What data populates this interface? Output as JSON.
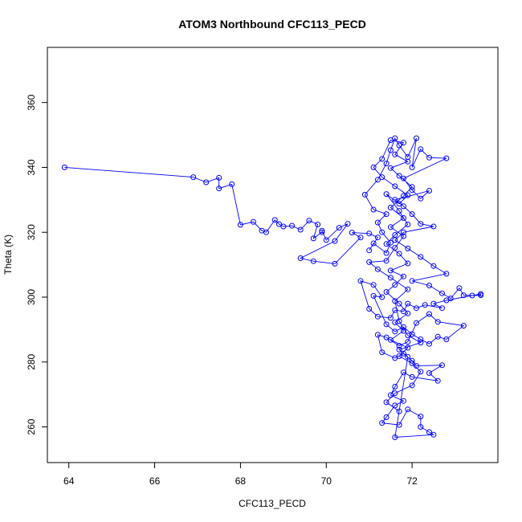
{
  "chart_data": {
    "type": "scatter",
    "title": "ATOM3 Northbound CFC113_PECD",
    "xlabel": "CFC113_PECD",
    "ylabel": "Theta (K)",
    "xlim": [
      63.5,
      74.0
    ],
    "ylim": [
      249.0,
      377.0
    ],
    "x_ticks": [
      64,
      66,
      68,
      70,
      72
    ],
    "y_ticks": [
      260,
      280,
      300,
      320,
      340,
      360
    ],
    "grid": false,
    "legend": "none",
    "series": [
      {
        "color": "#0000ff",
        "marker": "open-circle",
        "connected": true,
        "points": [
          [
            63.9,
            340.0
          ],
          [
            66.9,
            337.0
          ],
          [
            67.2,
            335.4
          ],
          [
            67.5,
            336.8
          ],
          [
            67.5,
            333.5
          ],
          [
            67.8,
            334.8
          ],
          [
            68.0,
            322.3
          ],
          [
            68.3,
            323.2
          ],
          [
            68.5,
            320.5
          ],
          [
            68.6,
            320.0
          ],
          [
            68.8,
            323.8
          ],
          [
            68.9,
            322.5
          ],
          [
            69.0,
            321.8
          ],
          [
            69.2,
            322.0
          ],
          [
            69.4,
            320.8
          ],
          [
            69.6,
            323.6
          ],
          [
            69.8,
            322.4
          ],
          [
            69.7,
            318.1
          ],
          [
            69.9,
            320.0
          ],
          [
            69.9,
            320.5
          ],
          [
            70.0,
            317.6
          ],
          [
            70.3,
            321.4
          ],
          [
            70.5,
            322.6
          ],
          [
            70.2,
            317.3
          ],
          [
            69.4,
            312.0
          ],
          [
            69.7,
            311.1
          ],
          [
            70.2,
            310.3
          ],
          [
            70.8,
            318.4
          ],
          [
            70.6,
            319.9
          ],
          [
            71.0,
            319.6
          ],
          [
            71.2,
            318.4
          ],
          [
            71.0,
            314.4
          ],
          [
            71.1,
            316.6
          ],
          [
            71.4,
            313.6
          ],
          [
            71.5,
            316.8
          ],
          [
            71.3,
            320.0
          ],
          [
            71.2,
            323.0
          ],
          [
            71.4,
            325.6
          ],
          [
            71.1,
            327.0
          ],
          [
            70.9,
            331.6
          ],
          [
            71.2,
            336.2
          ],
          [
            71.4,
            341.2
          ],
          [
            71.5,
            345.3
          ],
          [
            71.6,
            349.0
          ],
          [
            71.7,
            346.8
          ],
          [
            71.9,
            343.2
          ],
          [
            72.1,
            349.0
          ],
          [
            72.0,
            340.0
          ],
          [
            72.2,
            345.6
          ],
          [
            72.4,
            343.0
          ],
          [
            72.8,
            342.8
          ],
          [
            71.8,
            336.6
          ],
          [
            72.0,
            333.0
          ],
          [
            72.2,
            330.4
          ],
          [
            72.4,
            332.8
          ],
          [
            71.6,
            330.0
          ],
          [
            71.8,
            328.0
          ],
          [
            72.0,
            325.6
          ],
          [
            72.2,
            322.6
          ],
          [
            72.5,
            321.8
          ],
          [
            71.8,
            320.0
          ],
          [
            71.6,
            317.6
          ],
          [
            71.9,
            315.0
          ],
          [
            72.2,
            312.4
          ],
          [
            72.5,
            309.6
          ],
          [
            72.8,
            307.2
          ],
          [
            72.0,
            305.0
          ],
          [
            72.4,
            303.6
          ],
          [
            72.7,
            301.2
          ],
          [
            72.9,
            299.6
          ],
          [
            73.1,
            302.8
          ],
          [
            73.2,
            300.6
          ],
          [
            73.4,
            300.5
          ],
          [
            73.6,
            300.6
          ],
          [
            73.6,
            301.0
          ],
          [
            72.8,
            299.0
          ],
          [
            72.5,
            298.0
          ],
          [
            72.7,
            296.6
          ],
          [
            72.3,
            297.6
          ],
          [
            72.1,
            296.6
          ],
          [
            71.9,
            298.0
          ],
          [
            71.8,
            295.6
          ],
          [
            71.6,
            296.0
          ],
          [
            71.5,
            293.6
          ],
          [
            71.2,
            294.0
          ],
          [
            71.0,
            296.4
          ],
          [
            70.8,
            305.0
          ],
          [
            71.1,
            303.8
          ],
          [
            71.3,
            300.0
          ],
          [
            71.1,
            300.4
          ],
          [
            71.4,
            291.6
          ],
          [
            71.6,
            289.4
          ],
          [
            71.8,
            290.8
          ],
          [
            72.0,
            288.6
          ],
          [
            72.2,
            287.0
          ],
          [
            72.4,
            285.6
          ],
          [
            72.6,
            287.8
          ],
          [
            72.8,
            287.0
          ],
          [
            73.2,
            291.2
          ],
          [
            72.6,
            292.4
          ],
          [
            72.4,
            294.8
          ],
          [
            72.1,
            292.0
          ],
          [
            71.9,
            286.2
          ],
          [
            71.7,
            285.0
          ],
          [
            71.4,
            287.6
          ],
          [
            71.2,
            288.4
          ],
          [
            71.3,
            283.0
          ],
          [
            71.6,
            281.2
          ],
          [
            71.8,
            282.6
          ],
          [
            72.0,
            280.4
          ],
          [
            72.1,
            278.8
          ],
          [
            72.7,
            279.0
          ],
          [
            72.4,
            276.6
          ],
          [
            72.6,
            274.2
          ],
          [
            72.0,
            275.4
          ],
          [
            71.8,
            276.8
          ],
          [
            71.6,
            272.4
          ],
          [
            71.5,
            269.8
          ],
          [
            71.8,
            268.0
          ],
          [
            71.6,
            266.6
          ],
          [
            71.4,
            263.0
          ],
          [
            71.3,
            261.2
          ],
          [
            71.7,
            260.6
          ],
          [
            71.9,
            265.4
          ],
          [
            72.2,
            263.2
          ],
          [
            72.2,
            260.0
          ],
          [
            72.4,
            258.4
          ],
          [
            72.5,
            257.6
          ],
          [
            71.6,
            256.8
          ],
          [
            71.9,
            281.6
          ],
          [
            71.7,
            283.8
          ],
          [
            72.2,
            286.0
          ],
          [
            71.9,
            288.2
          ],
          [
            71.7,
            292.6
          ],
          [
            71.6,
            298.8
          ],
          [
            71.9,
            302.4
          ],
          [
            71.5,
            306.0
          ],
          [
            71.2,
            308.6
          ],
          [
            71.0,
            310.8
          ],
          [
            71.4,
            311.2
          ],
          [
            71.6,
            315.2
          ],
          [
            71.8,
            318.8
          ],
          [
            71.5,
            321.6
          ],
          [
            71.8,
            324.4
          ],
          [
            71.5,
            327.6
          ],
          [
            71.8,
            331.2
          ],
          [
            72.0,
            334.0
          ],
          [
            71.7,
            337.4
          ],
          [
            71.5,
            339.8
          ],
          [
            71.9,
            341.8
          ],
          [
            71.6,
            344.0
          ],
          [
            71.8,
            347.6
          ],
          [
            71.5,
            348.4
          ],
          [
            71.3,
            342.6
          ],
          [
            71.1,
            340.0
          ],
          [
            71.3,
            337.0
          ],
          [
            71.6,
            334.2
          ],
          [
            71.9,
            331.4
          ],
          [
            71.7,
            328.8
          ],
          [
            71.4,
            331.8
          ],
          [
            71.7,
            326.6
          ],
          [
            71.9,
            322.4
          ],
          [
            71.6,
            319.2
          ],
          [
            71.4,
            316.4
          ],
          [
            71.7,
            313.4
          ],
          [
            71.9,
            310.4
          ],
          [
            71.5,
            308.2
          ],
          [
            71.8,
            306.4
          ],
          [
            71.6,
            303.8
          ],
          [
            71.4,
            301.6
          ],
          [
            71.7,
            298.0
          ],
          [
            71.9,
            295.0
          ],
          [
            71.6,
            292.2
          ],
          [
            71.8,
            289.6
          ],
          [
            71.5,
            286.8
          ],
          [
            71.9,
            284.4
          ],
          [
            71.7,
            281.8
          ],
          [
            72.0,
            279.6
          ],
          [
            72.2,
            277.0
          ],
          [
            72.0,
            272.8
          ],
          [
            71.6,
            270.4
          ],
          [
            71.4,
            267.6
          ],
          [
            71.7,
            264.8
          ]
        ]
      }
    ]
  }
}
